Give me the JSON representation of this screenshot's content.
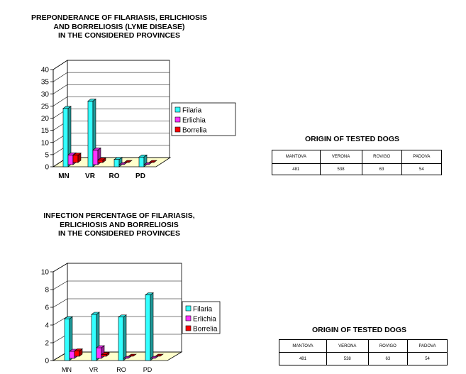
{
  "chart_data": [
    {
      "type": "bar",
      "title": [
        "PREPONDERANCE OF FILARIASIS, ERLICHIOSIS",
        "AND BORRELIOSIS (LYME DISEASE)",
        "IN THE CONSIDERED PROVINCES"
      ],
      "categories": [
        "MN",
        "VR",
        "RO",
        "PD"
      ],
      "ylim": [
        0,
        40
      ],
      "yticks": [
        0,
        5,
        10,
        15,
        20,
        25,
        30,
        35,
        40
      ],
      "grid": true,
      "legend": "right",
      "series": [
        {
          "name": "Filaria",
          "color": "#33ffff",
          "values": [
            24,
            27,
            3,
            4
          ]
        },
        {
          "name": "Erlichia",
          "color": "#ff33ff",
          "values": [
            4,
            6,
            0,
            0
          ]
        },
        {
          "name": "Borrelia",
          "color": "#ff0000",
          "values": [
            3,
            1,
            0,
            0
          ]
        }
      ]
    },
    {
      "type": "bar",
      "title": [
        "INFECTION PERCENTAGE OF FILARIASIS,",
        "ERLICHIOSIS AND BORRELIOSIS",
        "IN THE CONSIDERED PROVINCES"
      ],
      "categories": [
        "MN",
        "VR",
        "RO",
        "PD"
      ],
      "ylim": [
        0,
        10
      ],
      "yticks": [
        0,
        2,
        4,
        6,
        8,
        10
      ],
      "grid": true,
      "legend": "right",
      "series": [
        {
          "name": "Filaria",
          "color": "#33ffff",
          "values": [
            4.7,
            5.2,
            4.9,
            7.4
          ]
        },
        {
          "name": "Erlichia",
          "color": "#ff33ff",
          "values": [
            0.8,
            1.2,
            0,
            0
          ]
        },
        {
          "name": "Borrelia",
          "color": "#ff0000",
          "values": [
            0.6,
            0.2,
            0,
            0
          ]
        }
      ]
    }
  ],
  "origin_tables": [
    {
      "title": "ORIGIN OF TESTED DOGS",
      "headers": [
        "MANTOVA",
        "VERONA",
        "ROVIGO",
        "PADOVA"
      ],
      "values": [
        "481",
        "538",
        "63",
        "54"
      ]
    },
    {
      "title": "ORIGIN OF TESTED DOGS",
      "headers": [
        "MANTOVA",
        "VERONA",
        "ROVIGO",
        "PADOVA"
      ],
      "values": [
        "481",
        "538",
        "63",
        "54"
      ]
    }
  ]
}
